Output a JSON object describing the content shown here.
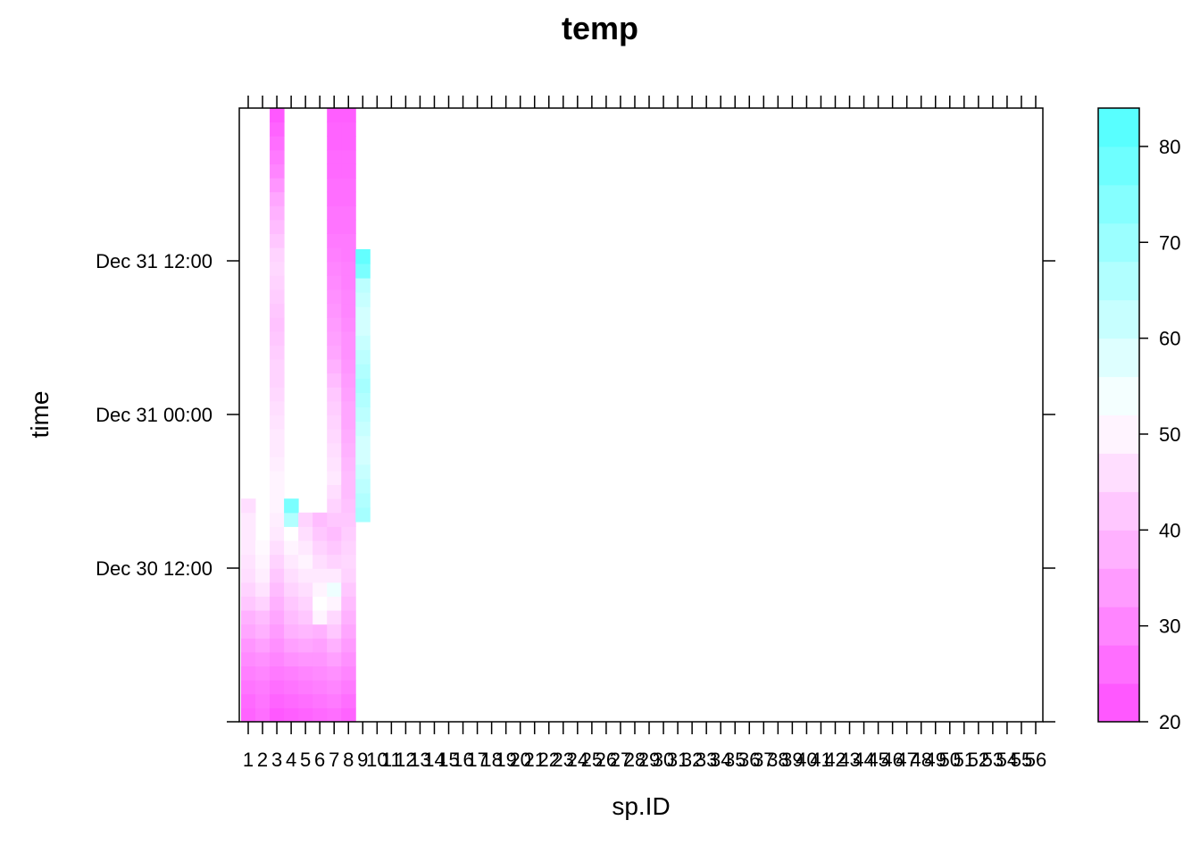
{
  "chart_data": {
    "type": "heatmap",
    "title": "temp",
    "xlabel": "sp.ID",
    "ylabel": "time",
    "x_categories": [
      "1",
      "2",
      "3",
      "4",
      "5",
      "6",
      "7",
      "8",
      "9",
      "10",
      "11",
      "12",
      "13",
      "14",
      "15",
      "16",
      "17",
      "18",
      "19",
      "20",
      "21",
      "22",
      "23",
      "24",
      "25",
      "26",
      "27",
      "28",
      "29",
      "30",
      "31",
      "32",
      "33",
      "34",
      "35",
      "36",
      "37",
      "38",
      "39",
      "40",
      "41",
      "42",
      "43",
      "44",
      "45",
      "46",
      "47",
      "48",
      "49",
      "50",
      "51",
      "52",
      "53",
      "54",
      "55",
      "56"
    ],
    "y_ticks": [
      "Dec 30 12:00",
      "Dec 31 00:00",
      "Dec 31 12:00"
    ],
    "colorbar": {
      "range": [
        20,
        84
      ],
      "breaks": [
        20,
        30,
        40,
        50,
        60,
        70,
        80
      ],
      "low_color": "#ff4dff",
      "mid_color": "#ffffff",
      "high_color": "#4dffff"
    },
    "series": [
      {
        "sp_id": "1",
        "values": [
          24,
          25,
          27,
          29,
          31,
          33,
          36,
          38,
          42,
          44,
          46,
          47,
          48,
          48,
          48,
          46
        ]
      },
      {
        "sp_id": "2",
        "values": [
          26,
          27,
          28,
          30,
          32,
          35,
          38,
          40,
          44,
          47,
          49,
          50,
          51
        ]
      },
      {
        "sp_id": "3",
        "values": [
          22,
          24,
          26,
          28,
          30,
          32,
          34,
          36,
          38,
          40,
          42,
          44,
          46,
          48,
          49,
          50,
          50,
          50,
          49,
          48,
          48,
          47,
          46,
          45,
          44,
          44,
          43,
          42,
          41,
          42,
          43,
          44,
          45,
          44,
          42,
          40,
          38,
          36,
          33,
          30,
          28,
          26,
          24,
          22
        ]
      },
      {
        "sp_id": "4",
        "values": [
          23,
          25,
          27,
          29,
          32,
          35,
          38,
          40,
          42,
          44,
          46,
          48,
          50,
          52,
          66,
          76
        ]
      },
      {
        "sp_id": "5",
        "values": [
          24,
          26,
          28,
          30,
          33,
          36,
          39,
          42,
          44,
          46,
          48,
          50,
          48,
          46,
          44
        ]
      },
      {
        "sp_id": "6",
        "values": [
          25,
          27,
          29,
          31,
          33,
          35,
          38,
          50,
          52,
          50,
          48,
          46,
          44,
          42,
          40
        ]
      },
      {
        "sp_id": "7",
        "values": [
          26,
          28,
          30,
          32,
          35,
          38,
          42,
          45,
          50,
          55,
          48,
          44,
          42,
          40,
          42,
          44,
          46,
          48,
          47,
          46,
          45,
          44,
          43,
          42,
          40,
          38,
          36,
          35,
          34,
          33,
          32,
          31,
          30,
          29,
          28,
          27,
          27,
          26,
          26,
          25,
          25,
          24,
          24,
          23
        ]
      },
      {
        "sp_id": "8",
        "values": [
          24,
          26,
          28,
          30,
          32,
          34,
          36,
          38,
          40,
          42,
          44,
          45,
          44,
          43,
          42,
          41,
          40,
          40,
          39,
          38,
          37,
          36,
          36,
          35,
          34,
          33,
          32,
          32,
          31,
          30,
          30,
          29,
          29,
          28,
          28,
          27,
          27,
          26,
          26,
          25,
          25,
          24,
          24,
          23
        ]
      },
      {
        "sp_id": "9",
        "values": [
          68,
          66,
          64,
          62,
          60,
          60,
          62,
          64,
          66,
          68,
          66,
          64,
          62,
          60,
          60,
          62,
          64,
          76,
          80
        ]
      }
    ]
  }
}
